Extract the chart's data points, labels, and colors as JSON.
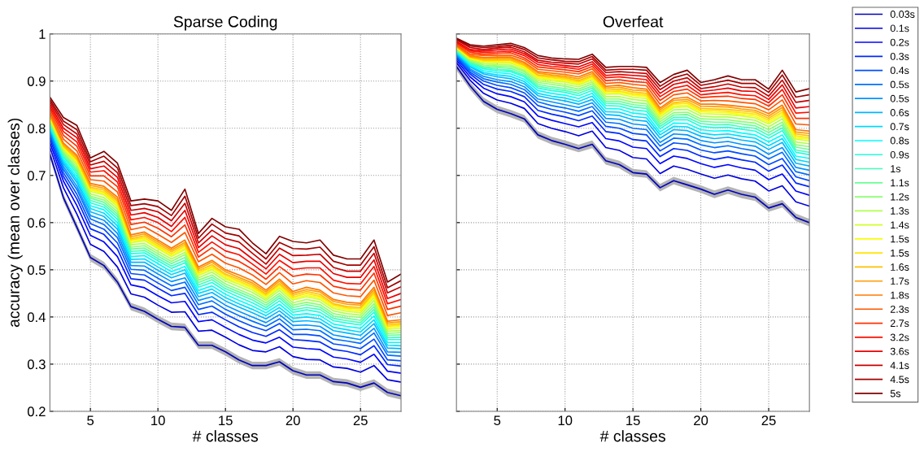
{
  "chart_data": [
    {
      "type": "line",
      "title": "Sparse Coding",
      "xlabel": "# classes",
      "ylabel": "accuracy (mean over classes)",
      "x": [
        2,
        3,
        4,
        5,
        6,
        7,
        8,
        9,
        10,
        11,
        12,
        13,
        14,
        15,
        16,
        17,
        18,
        19,
        20,
        21,
        22,
        23,
        24,
        25,
        26,
        27,
        28
      ],
      "xlim": [
        2,
        28
      ],
      "xticks": [
        5,
        10,
        15,
        20,
        25
      ],
      "ylim": [
        0.2,
        1
      ],
      "yticks": [
        0.2,
        0.3,
        0.4,
        0.5,
        0.6,
        0.7,
        0.8,
        0.9,
        1
      ],
      "grid": true,
      "line_style": "solid",
      "legend": "right",
      "series": [
        {
          "name": "0.03s",
          "color": "#0000bd",
          "values": [
            0.745,
            0.653,
            0.59,
            0.526,
            0.509,
            0.474,
            0.422,
            0.412,
            0.395,
            0.38,
            0.378,
            0.34,
            0.34,
            0.326,
            0.309,
            0.297,
            0.297,
            0.305,
            0.286,
            0.277,
            0.277,
            0.263,
            0.26,
            0.251,
            0.26,
            0.24,
            0.233
          ],
          "lower": [
            0.737,
            0.645,
            0.582,
            0.518,
            0.501,
            0.466,
            0.414,
            0.404,
            0.387,
            0.372,
            0.37,
            0.332,
            0.332,
            0.318,
            0.301,
            0.289,
            0.289,
            0.297,
            0.278,
            0.269,
            0.269,
            0.255,
            0.252,
            0.243,
            0.252,
            0.232,
            0.225
          ],
          "upper": [
            0.753,
            0.661,
            0.598,
            0.534,
            0.517,
            0.482,
            0.43,
            0.42,
            0.403,
            0.388,
            0.386,
            0.348,
            0.348,
            0.334,
            0.317,
            0.305,
            0.305,
            0.313,
            0.294,
            0.285,
            0.285,
            0.271,
            0.268,
            0.259,
            0.268,
            0.248,
            0.241
          ]
        },
        {
          "name": "0.1s",
          "color": "#0000e0",
          "values": [
            0.76,
            0.674,
            0.618,
            0.554,
            0.539,
            0.506,
            0.449,
            0.442,
            0.425,
            0.41,
            0.411,
            0.37,
            0.372,
            0.357,
            0.341,
            0.329,
            0.326,
            0.337,
            0.316,
            0.31,
            0.309,
            0.294,
            0.291,
            0.283,
            0.297,
            0.267,
            0.262
          ]
        },
        {
          "name": "0.2s",
          "color": "#0005ff",
          "values": [
            0.77,
            0.688,
            0.636,
            0.573,
            0.559,
            0.528,
            0.468,
            0.462,
            0.445,
            0.43,
            0.433,
            0.39,
            0.394,
            0.378,
            0.363,
            0.351,
            0.345,
            0.357,
            0.336,
            0.333,
            0.331,
            0.315,
            0.311,
            0.304,
            0.321,
            0.285,
            0.281
          ]
        },
        {
          "name": "0.3s",
          "color": "#0028ff",
          "values": [
            0.778,
            0.698,
            0.65,
            0.587,
            0.575,
            0.544,
            0.481,
            0.478,
            0.461,
            0.445,
            0.45,
            0.405,
            0.41,
            0.394,
            0.379,
            0.367,
            0.359,
            0.373,
            0.352,
            0.35,
            0.347,
            0.331,
            0.327,
            0.32,
            0.339,
            0.299,
            0.296
          ]
        },
        {
          "name": "0.4s",
          "color": "#004cff",
          "values": [
            0.784,
            0.706,
            0.66,
            0.598,
            0.586,
            0.557,
            0.492,
            0.489,
            0.472,
            0.456,
            0.463,
            0.416,
            0.423,
            0.406,
            0.392,
            0.38,
            0.371,
            0.386,
            0.363,
            0.363,
            0.36,
            0.343,
            0.339,
            0.333,
            0.353,
            0.309,
            0.307
          ]
        },
        {
          "name": "0.5s",
          "color": "#006fff",
          "values": [
            0.789,
            0.713,
            0.67,
            0.608,
            0.596,
            0.568,
            0.501,
            0.499,
            0.482,
            0.466,
            0.474,
            0.426,
            0.434,
            0.416,
            0.403,
            0.391,
            0.38,
            0.396,
            0.373,
            0.374,
            0.371,
            0.353,
            0.349,
            0.344,
            0.366,
            0.319,
            0.317
          ]
        },
        {
          "name": "0.5s",
          "color": "#0093ff",
          "values": [
            0.793,
            0.719,
            0.677,
            0.615,
            0.605,
            0.577,
            0.509,
            0.508,
            0.491,
            0.475,
            0.483,
            0.435,
            0.443,
            0.425,
            0.412,
            0.4,
            0.388,
            0.405,
            0.382,
            0.383,
            0.38,
            0.362,
            0.357,
            0.352,
            0.376,
            0.326,
            0.325
          ]
        },
        {
          "name": "0.6s",
          "color": "#00b6ff",
          "values": [
            0.798,
            0.725,
            0.685,
            0.623,
            0.613,
            0.586,
            0.516,
            0.516,
            0.499,
            0.483,
            0.493,
            0.443,
            0.452,
            0.434,
            0.421,
            0.409,
            0.396,
            0.413,
            0.39,
            0.392,
            0.389,
            0.371,
            0.366,
            0.361,
            0.386,
            0.334,
            0.333
          ]
        },
        {
          "name": "0.7s",
          "color": "#00daff",
          "values": [
            0.801,
            0.73,
            0.691,
            0.63,
            0.62,
            0.593,
            0.522,
            0.523,
            0.506,
            0.49,
            0.5,
            0.45,
            0.459,
            0.441,
            0.428,
            0.416,
            0.403,
            0.42,
            0.397,
            0.4,
            0.396,
            0.378,
            0.373,
            0.368,
            0.394,
            0.34,
            0.339
          ]
        },
        {
          "name": "0.8s",
          "color": "#00fdff",
          "values": [
            0.804,
            0.734,
            0.697,
            0.636,
            0.627,
            0.6,
            0.528,
            0.53,
            0.513,
            0.496,
            0.507,
            0.456,
            0.466,
            0.448,
            0.435,
            0.423,
            0.409,
            0.427,
            0.404,
            0.407,
            0.403,
            0.385,
            0.38,
            0.376,
            0.402,
            0.346,
            0.346
          ]
        },
        {
          "name": "0.9s",
          "color": "#22ffdd",
          "values": [
            0.808,
            0.739,
            0.703,
            0.642,
            0.633,
            0.607,
            0.534,
            0.536,
            0.519,
            0.503,
            0.515,
            0.463,
            0.473,
            0.455,
            0.442,
            0.43,
            0.415,
            0.434,
            0.41,
            0.415,
            0.41,
            0.392,
            0.387,
            0.383,
            0.41,
            0.352,
            0.352
          ]
        },
        {
          "name": "1s",
          "color": "#45ffb9",
          "values": [
            0.81,
            0.742,
            0.708,
            0.647,
            0.638,
            0.613,
            0.539,
            0.541,
            0.524,
            0.508,
            0.52,
            0.468,
            0.479,
            0.46,
            0.448,
            0.436,
            0.42,
            0.44,
            0.415,
            0.42,
            0.416,
            0.397,
            0.392,
            0.388,
            0.416,
            0.356,
            0.357
          ]
        },
        {
          "name": "1.1s",
          "color": "#69ff96",
          "values": [
            0.813,
            0.746,
            0.712,
            0.652,
            0.643,
            0.618,
            0.544,
            0.546,
            0.529,
            0.513,
            0.526,
            0.473,
            0.484,
            0.465,
            0.453,
            0.441,
            0.425,
            0.445,
            0.42,
            0.426,
            0.421,
            0.402,
            0.397,
            0.393,
            0.422,
            0.361,
            0.362
          ]
        },
        {
          "name": "1.2s",
          "color": "#8cff72",
          "values": [
            0.816,
            0.749,
            0.717,
            0.656,
            0.648,
            0.623,
            0.548,
            0.551,
            0.534,
            0.518,
            0.532,
            0.478,
            0.489,
            0.47,
            0.458,
            0.446,
            0.43,
            0.45,
            0.425,
            0.431,
            0.426,
            0.407,
            0.402,
            0.399,
            0.428,
            0.365,
            0.367
          ]
        },
        {
          "name": "1.3s",
          "color": "#b0ff4f",
          "values": [
            0.818,
            0.753,
            0.722,
            0.661,
            0.653,
            0.629,
            0.553,
            0.556,
            0.539,
            0.523,
            0.537,
            0.483,
            0.495,
            0.476,
            0.464,
            0.452,
            0.435,
            0.456,
            0.43,
            0.437,
            0.432,
            0.413,
            0.407,
            0.404,
            0.435,
            0.37,
            0.371
          ]
        },
        {
          "name": "1.4s",
          "color": "#d3ff2b",
          "values": [
            0.821,
            0.756,
            0.726,
            0.666,
            0.659,
            0.634,
            0.557,
            0.562,
            0.545,
            0.528,
            0.543,
            0.488,
            0.5,
            0.481,
            0.469,
            0.457,
            0.439,
            0.461,
            0.436,
            0.443,
            0.437,
            0.418,
            0.412,
            0.409,
            0.441,
            0.374,
            0.376
          ]
        },
        {
          "name": "1.5s",
          "color": "#f7ff08",
          "values": [
            0.822,
            0.759,
            0.729,
            0.669,
            0.662,
            0.638,
            0.56,
            0.565,
            0.548,
            0.531,
            0.546,
            0.491,
            0.504,
            0.484,
            0.473,
            0.461,
            0.443,
            0.464,
            0.439,
            0.446,
            0.441,
            0.421,
            0.416,
            0.413,
            0.445,
            0.377,
            0.38
          ]
        },
        {
          "name": "1.5s",
          "color": "#ffe400",
          "values": [
            0.824,
            0.761,
            0.732,
            0.672,
            0.665,
            0.641,
            0.563,
            0.568,
            0.551,
            0.534,
            0.55,
            0.494,
            0.507,
            0.488,
            0.476,
            0.464,
            0.446,
            0.468,
            0.442,
            0.45,
            0.444,
            0.425,
            0.419,
            0.417,
            0.449,
            0.38,
            0.383
          ]
        },
        {
          "name": "1.6s",
          "color": "#ffc000",
          "values": [
            0.826,
            0.763,
            0.735,
            0.675,
            0.669,
            0.645,
            0.566,
            0.572,
            0.555,
            0.538,
            0.554,
            0.498,
            0.511,
            0.491,
            0.48,
            0.468,
            0.449,
            0.471,
            0.446,
            0.454,
            0.448,
            0.428,
            0.422,
            0.42,
            0.453,
            0.383,
            0.386
          ]
        },
        {
          "name": "1.7s",
          "color": "#ff9d00",
          "values": [
            0.828,
            0.766,
            0.739,
            0.679,
            0.673,
            0.649,
            0.57,
            0.576,
            0.559,
            0.542,
            0.558,
            0.502,
            0.516,
            0.496,
            0.484,
            0.472,
            0.453,
            0.476,
            0.45,
            0.458,
            0.453,
            0.433,
            0.427,
            0.425,
            0.458,
            0.387,
            0.39
          ]
        },
        {
          "name": "1.8s",
          "color": "#ff7900",
          "values": [
            0.83,
            0.769,
            0.743,
            0.683,
            0.677,
            0.654,
            0.574,
            0.58,
            0.563,
            0.546,
            0.563,
            0.506,
            0.52,
            0.5,
            0.489,
            0.477,
            0.457,
            0.48,
            0.454,
            0.463,
            0.457,
            0.437,
            0.431,
            0.429,
            0.463,
            0.391,
            0.394
          ]
        },
        {
          "name": "2.3s",
          "color": "#ff5600",
          "values": [
            0.835,
            0.777,
            0.752,
            0.691,
            0.688,
            0.665,
            0.585,
            0.591,
            0.575,
            0.558,
            0.579,
            0.517,
            0.533,
            0.514,
            0.504,
            0.489,
            0.469,
            0.494,
            0.47,
            0.477,
            0.473,
            0.451,
            0.445,
            0.443,
            0.478,
            0.403,
            0.409
          ]
        },
        {
          "name": "2.7s",
          "color": "#ff3200",
          "values": [
            0.841,
            0.785,
            0.762,
            0.699,
            0.699,
            0.676,
            0.596,
            0.601,
            0.588,
            0.57,
            0.595,
            0.527,
            0.547,
            0.527,
            0.518,
            0.501,
            0.48,
            0.507,
            0.486,
            0.491,
            0.489,
            0.465,
            0.459,
            0.457,
            0.493,
            0.416,
            0.423
          ]
        },
        {
          "name": "3.2s",
          "color": "#ff0f00",
          "values": [
            0.846,
            0.793,
            0.771,
            0.707,
            0.71,
            0.686,
            0.606,
            0.611,
            0.6,
            0.581,
            0.611,
            0.537,
            0.559,
            0.54,
            0.532,
            0.512,
            0.491,
            0.52,
            0.501,
            0.504,
            0.504,
            0.478,
            0.471,
            0.47,
            0.507,
            0.428,
            0.437
          ]
        },
        {
          "name": "3.6s",
          "color": "#ea0000",
          "values": [
            0.851,
            0.8,
            0.78,
            0.714,
            0.72,
            0.696,
            0.616,
            0.621,
            0.611,
            0.592,
            0.626,
            0.547,
            0.572,
            0.553,
            0.545,
            0.523,
            0.502,
            0.533,
            0.515,
            0.518,
            0.518,
            0.492,
            0.484,
            0.484,
            0.521,
            0.439,
            0.45
          ]
        },
        {
          "name": "4.1s",
          "color": "#c60000",
          "values": [
            0.856,
            0.808,
            0.788,
            0.722,
            0.73,
            0.706,
            0.626,
            0.63,
            0.623,
            0.604,
            0.641,
            0.557,
            0.584,
            0.566,
            0.559,
            0.535,
            0.512,
            0.546,
            0.53,
            0.531,
            0.533,
            0.505,
            0.497,
            0.497,
            0.535,
            0.451,
            0.464
          ]
        },
        {
          "name": "4.5s",
          "color": "#a30000",
          "values": [
            0.861,
            0.815,
            0.797,
            0.729,
            0.741,
            0.716,
            0.636,
            0.64,
            0.634,
            0.615,
            0.656,
            0.567,
            0.597,
            0.578,
            0.572,
            0.546,
            0.523,
            0.558,
            0.545,
            0.544,
            0.548,
            0.518,
            0.51,
            0.51,
            0.549,
            0.462,
            0.477
          ]
        },
        {
          "name": "5s",
          "color": "#800000",
          "values": [
            0.866,
            0.823,
            0.806,
            0.737,
            0.751,
            0.726,
            0.646,
            0.65,
            0.646,
            0.626,
            0.671,
            0.577,
            0.609,
            0.591,
            0.586,
            0.557,
            0.534,
            0.571,
            0.56,
            0.557,
            0.563,
            0.531,
            0.523,
            0.523,
            0.563,
            0.474,
            0.491
          ]
        }
      ]
    },
    {
      "type": "line",
      "title": "Overfeat",
      "xlabel": "# classes",
      "x": [
        2,
        3,
        4,
        5,
        6,
        7,
        8,
        9,
        10,
        11,
        12,
        13,
        14,
        15,
        16,
        17,
        18,
        19,
        20,
        21,
        22,
        23,
        24,
        25,
        26,
        27,
        28
      ],
      "xlim": [
        2,
        28
      ],
      "xticks": [
        5,
        10,
        15,
        20,
        25
      ],
      "ylim": [
        0.2,
        1
      ],
      "yticks": [
        0.2,
        0.3,
        0.4,
        0.5,
        0.6,
        0.7,
        0.8,
        0.9,
        1
      ],
      "grid": true,
      "line_style": "solid",
      "tick_labels": "x",
      "series": [
        {
          "color": "#0000bd",
          "values": [
            0.931,
            0.89,
            0.857,
            0.84,
            0.831,
            0.82,
            0.786,
            0.774,
            0.766,
            0.757,
            0.766,
            0.731,
            0.723,
            0.706,
            0.703,
            0.674,
            0.689,
            0.68,
            0.671,
            0.66,
            0.669,
            0.66,
            0.654,
            0.631,
            0.64,
            0.611,
            0.6
          ],
          "lower": [
            0.923,
            0.882,
            0.849,
            0.832,
            0.823,
            0.812,
            0.778,
            0.766,
            0.758,
            0.749,
            0.758,
            0.723,
            0.715,
            0.698,
            0.695,
            0.666,
            0.681,
            0.672,
            0.663,
            0.652,
            0.661,
            0.652,
            0.646,
            0.623,
            0.632,
            0.603,
            0.592
          ],
          "upper": [
            0.939,
            0.898,
            0.865,
            0.848,
            0.839,
            0.828,
            0.794,
            0.782,
            0.774,
            0.765,
            0.774,
            0.739,
            0.731,
            0.714,
            0.711,
            0.682,
            0.697,
            0.688,
            0.679,
            0.668,
            0.677,
            0.668,
            0.662,
            0.639,
            0.648,
            0.619,
            0.608
          ]
        },
        {
          "color": "#0000e0",
          "values": [
            0.939,
            0.902,
            0.874,
            0.86,
            0.853,
            0.842,
            0.81,
            0.8,
            0.793,
            0.784,
            0.794,
            0.759,
            0.753,
            0.738,
            0.735,
            0.704,
            0.72,
            0.713,
            0.703,
            0.694,
            0.701,
            0.693,
            0.688,
            0.667,
            0.678,
            0.644,
            0.635
          ]
        },
        {
          "color": "#0005ff",
          "values": [
            0.944,
            0.909,
            0.885,
            0.873,
            0.867,
            0.856,
            0.826,
            0.817,
            0.81,
            0.803,
            0.812,
            0.778,
            0.773,
            0.76,
            0.757,
            0.725,
            0.741,
            0.736,
            0.725,
            0.717,
            0.723,
            0.716,
            0.711,
            0.691,
            0.703,
            0.667,
            0.658
          ]
        },
        {
          "color": "#0028ff",
          "values": [
            0.948,
            0.915,
            0.893,
            0.883,
            0.878,
            0.867,
            0.838,
            0.83,
            0.824,
            0.816,
            0.826,
            0.793,
            0.789,
            0.776,
            0.773,
            0.74,
            0.757,
            0.753,
            0.741,
            0.734,
            0.739,
            0.733,
            0.728,
            0.709,
            0.722,
            0.684,
            0.676
          ]
        },
        {
          "color": "#004cff",
          "values": [
            0.951,
            0.919,
            0.9,
            0.891,
            0.886,
            0.875,
            0.848,
            0.84,
            0.834,
            0.827,
            0.837,
            0.804,
            0.8,
            0.789,
            0.786,
            0.752,
            0.769,
            0.766,
            0.754,
            0.748,
            0.752,
            0.746,
            0.741,
            0.723,
            0.736,
            0.697,
            0.689
          ]
        },
        {
          "color": "#006fff",
          "values": [
            0.954,
            0.923,
            0.905,
            0.898,
            0.893,
            0.882,
            0.856,
            0.848,
            0.843,
            0.836,
            0.846,
            0.813,
            0.81,
            0.8,
            0.797,
            0.762,
            0.779,
            0.777,
            0.765,
            0.759,
            0.763,
            0.757,
            0.752,
            0.735,
            0.749,
            0.708,
            0.701
          ]
        },
        {
          "color": "#0093ff",
          "values": [
            0.956,
            0.926,
            0.91,
            0.903,
            0.899,
            0.888,
            0.862,
            0.856,
            0.85,
            0.844,
            0.854,
            0.821,
            0.819,
            0.809,
            0.806,
            0.77,
            0.788,
            0.786,
            0.774,
            0.769,
            0.772,
            0.766,
            0.762,
            0.745,
            0.759,
            0.717,
            0.711
          ]
        },
        {
          "color": "#00b6ff",
          "values": [
            0.958,
            0.93,
            0.915,
            0.909,
            0.905,
            0.894,
            0.869,
            0.863,
            0.858,
            0.851,
            0.861,
            0.829,
            0.827,
            0.818,
            0.815,
            0.779,
            0.797,
            0.795,
            0.783,
            0.778,
            0.781,
            0.775,
            0.771,
            0.755,
            0.77,
            0.726,
            0.72
          ]
        },
        {
          "color": "#00daff",
          "values": [
            0.96,
            0.932,
            0.918,
            0.913,
            0.91,
            0.899,
            0.874,
            0.868,
            0.864,
            0.857,
            0.868,
            0.835,
            0.834,
            0.825,
            0.822,
            0.786,
            0.804,
            0.803,
            0.79,
            0.786,
            0.788,
            0.783,
            0.779,
            0.763,
            0.778,
            0.734,
            0.728
          ]
        },
        {
          "color": "#00fdff",
          "values": [
            0.962,
            0.935,
            0.922,
            0.918,
            0.915,
            0.904,
            0.88,
            0.874,
            0.87,
            0.863,
            0.874,
            0.842,
            0.841,
            0.832,
            0.829,
            0.792,
            0.811,
            0.81,
            0.797,
            0.794,
            0.795,
            0.79,
            0.786,
            0.771,
            0.786,
            0.741,
            0.736
          ]
        },
        {
          "color": "#22ffdd",
          "values": [
            0.964,
            0.937,
            0.926,
            0.922,
            0.92,
            0.909,
            0.885,
            0.88,
            0.876,
            0.869,
            0.88,
            0.848,
            0.847,
            0.839,
            0.836,
            0.799,
            0.818,
            0.818,
            0.804,
            0.801,
            0.802,
            0.798,
            0.794,
            0.779,
            0.795,
            0.749,
            0.744
          ]
        },
        {
          "color": "#45ffb9",
          "values": [
            0.965,
            0.939,
            0.929,
            0.925,
            0.923,
            0.912,
            0.889,
            0.884,
            0.88,
            0.874,
            0.885,
            0.853,
            0.852,
            0.845,
            0.842,
            0.804,
            0.823,
            0.823,
            0.81,
            0.807,
            0.808,
            0.803,
            0.8,
            0.785,
            0.801,
            0.754,
            0.749
          ]
        },
        {
          "color": "#69ff96",
          "values": [
            0.966,
            0.941,
            0.931,
            0.929,
            0.927,
            0.916,
            0.893,
            0.888,
            0.884,
            0.879,
            0.889,
            0.857,
            0.857,
            0.85,
            0.847,
            0.809,
            0.828,
            0.829,
            0.815,
            0.813,
            0.813,
            0.809,
            0.805,
            0.791,
            0.807,
            0.76,
            0.755
          ]
        },
        {
          "color": "#8cff72",
          "values": [
            0.968,
            0.943,
            0.934,
            0.932,
            0.931,
            0.92,
            0.897,
            0.893,
            0.889,
            0.883,
            0.894,
            0.862,
            0.862,
            0.855,
            0.852,
            0.814,
            0.833,
            0.834,
            0.82,
            0.819,
            0.818,
            0.814,
            0.811,
            0.797,
            0.813,
            0.765,
            0.761
          ]
        },
        {
          "color": "#b0ff4f",
          "values": [
            0.969,
            0.945,
            0.937,
            0.935,
            0.934,
            0.923,
            0.901,
            0.897,
            0.893,
            0.888,
            0.898,
            0.867,
            0.867,
            0.861,
            0.858,
            0.819,
            0.839,
            0.84,
            0.826,
            0.824,
            0.824,
            0.82,
            0.817,
            0.803,
            0.82,
            0.771,
            0.767
          ]
        },
        {
          "color": "#d3ff2b",
          "values": [
            0.97,
            0.947,
            0.94,
            0.939,
            0.938,
            0.927,
            0.905,
            0.901,
            0.898,
            0.892,
            0.903,
            0.872,
            0.873,
            0.866,
            0.863,
            0.824,
            0.844,
            0.846,
            0.831,
            0.83,
            0.829,
            0.826,
            0.822,
            0.809,
            0.826,
            0.777,
            0.773
          ]
        },
        {
          "color": "#f7ff08",
          "values": [
            0.971,
            0.948,
            0.942,
            0.941,
            0.94,
            0.929,
            0.908,
            0.904,
            0.901,
            0.895,
            0.906,
            0.875,
            0.876,
            0.87,
            0.867,
            0.828,
            0.847,
            0.849,
            0.835,
            0.834,
            0.833,
            0.829,
            0.826,
            0.813,
            0.83,
            0.78,
            0.777
          ]
        },
        {
          "color": "#ffe400",
          "values": [
            0.972,
            0.95,
            0.943,
            0.943,
            0.943,
            0.932,
            0.911,
            0.907,
            0.904,
            0.898,
            0.909,
            0.878,
            0.879,
            0.873,
            0.87,
            0.831,
            0.851,
            0.853,
            0.838,
            0.838,
            0.836,
            0.833,
            0.83,
            0.817,
            0.834,
            0.784,
            0.78
          ]
        },
        {
          "color": "#ffc000",
          "values": [
            0.973,
            0.951,
            0.945,
            0.945,
            0.945,
            0.934,
            0.913,
            0.91,
            0.907,
            0.901,
            0.912,
            0.881,
            0.883,
            0.877,
            0.874,
            0.835,
            0.854,
            0.857,
            0.842,
            0.841,
            0.84,
            0.837,
            0.834,
            0.821,
            0.839,
            0.788,
            0.784
          ]
        },
        {
          "color": "#ff9d00",
          "values": [
            0.974,
            0.952,
            0.948,
            0.948,
            0.948,
            0.937,
            0.917,
            0.913,
            0.91,
            0.905,
            0.916,
            0.885,
            0.887,
            0.881,
            0.879,
            0.839,
            0.859,
            0.861,
            0.847,
            0.846,
            0.845,
            0.841,
            0.838,
            0.826,
            0.844,
            0.792,
            0.789
          ]
        },
        {
          "color": "#ff7900",
          "values": [
            0.975,
            0.954,
            0.95,
            0.951,
            0.951,
            0.94,
            0.92,
            0.917,
            0.914,
            0.909,
            0.92,
            0.889,
            0.891,
            0.886,
            0.883,
            0.843,
            0.863,
            0.866,
            0.851,
            0.851,
            0.849,
            0.846,
            0.843,
            0.831,
            0.849,
            0.797,
            0.794
          ]
        },
        {
          "color": "#ff5600",
          "values": [
            0.977,
            0.957,
            0.954,
            0.955,
            0.955,
            0.945,
            0.925,
            0.922,
            0.919,
            0.915,
            0.926,
            0.895,
            0.897,
            0.893,
            0.89,
            0.851,
            0.871,
            0.875,
            0.858,
            0.859,
            0.858,
            0.855,
            0.852,
            0.839,
            0.86,
            0.809,
            0.807
          ]
        },
        {
          "color": "#ff3200",
          "values": [
            0.98,
            0.961,
            0.957,
            0.959,
            0.96,
            0.949,
            0.93,
            0.927,
            0.924,
            0.92,
            0.931,
            0.901,
            0.903,
            0.899,
            0.897,
            0.859,
            0.878,
            0.883,
            0.865,
            0.867,
            0.868,
            0.863,
            0.861,
            0.847,
            0.871,
            0.821,
            0.821
          ]
        },
        {
          "color": "#ff0f00",
          "values": [
            0.982,
            0.964,
            0.961,
            0.962,
            0.964,
            0.954,
            0.935,
            0.931,
            0.929,
            0.925,
            0.936,
            0.907,
            0.909,
            0.906,
            0.903,
            0.867,
            0.885,
            0.891,
            0.871,
            0.874,
            0.876,
            0.871,
            0.869,
            0.854,
            0.882,
            0.832,
            0.834
          ]
        },
        {
          "color": "#ea0000",
          "values": [
            0.984,
            0.967,
            0.964,
            0.966,
            0.968,
            0.958,
            0.94,
            0.936,
            0.933,
            0.93,
            0.941,
            0.912,
            0.914,
            0.912,
            0.91,
            0.874,
            0.893,
            0.899,
            0.878,
            0.881,
            0.885,
            0.879,
            0.878,
            0.861,
            0.892,
            0.843,
            0.846
          ]
        },
        {
          "color": "#c60000",
          "values": [
            0.987,
            0.971,
            0.967,
            0.97,
            0.972,
            0.962,
            0.944,
            0.94,
            0.938,
            0.936,
            0.947,
            0.918,
            0.92,
            0.918,
            0.916,
            0.882,
            0.9,
            0.907,
            0.884,
            0.888,
            0.894,
            0.887,
            0.886,
            0.868,
            0.902,
            0.855,
            0.859
          ]
        },
        {
          "color": "#a30000",
          "values": [
            0.989,
            0.974,
            0.971,
            0.973,
            0.976,
            0.967,
            0.949,
            0.945,
            0.942,
            0.941,
            0.952,
            0.923,
            0.925,
            0.925,
            0.923,
            0.889,
            0.907,
            0.915,
            0.891,
            0.896,
            0.902,
            0.895,
            0.895,
            0.876,
            0.913,
            0.866,
            0.871
          ]
        },
        {
          "color": "#800000",
          "values": [
            0.991,
            0.977,
            0.974,
            0.977,
            0.98,
            0.971,
            0.954,
            0.949,
            0.947,
            0.946,
            0.957,
            0.929,
            0.931,
            0.931,
            0.929,
            0.897,
            0.914,
            0.923,
            0.897,
            0.903,
            0.911,
            0.903,
            0.903,
            0.883,
            0.923,
            0.877,
            0.884
          ]
        }
      ]
    }
  ]
}
